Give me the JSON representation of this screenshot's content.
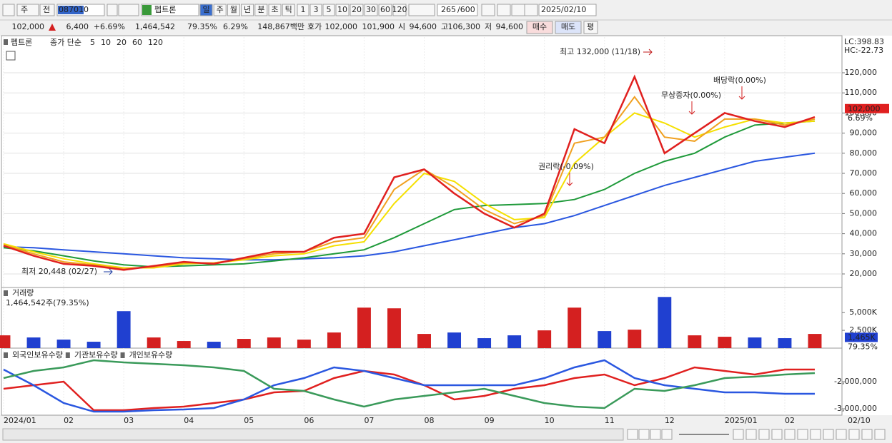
{
  "toolbar": {
    "market": "주",
    "prev": "전",
    "code": "087010",
    "name": "펩트론",
    "periods": [
      "일",
      "주",
      "월",
      "년",
      "분",
      "초",
      "틱"
    ],
    "intervals": [
      "1",
      "3",
      "5",
      "10",
      "20",
      "30",
      "60",
      "120"
    ],
    "count": "265",
    "max": "/600",
    "date": "2025/02/10"
  },
  "quote": {
    "price": "102,000",
    "change": "6,400",
    "rate": "+6.69%",
    "volume": "1,464,542",
    "volume_rate": "79.35%",
    "turnover": "6.29%",
    "amount": "148,867백만",
    "ask_label": "호가",
    "ask": "102,000",
    "bid": "101,900",
    "open_label": "시",
    "open": "94,600",
    "high_label": "고",
    "high": "106,300",
    "low_label": "저",
    "low": "94,600",
    "buy": "매수",
    "sell": "매도",
    "avg": "평"
  },
  "chart_data": [
    {
      "type": "line",
      "title": "펩트론",
      "legend_label": "종가 단순",
      "series": [
        {
          "name": "5",
          "color": "#e0201f",
          "values": [
            34000,
            29000,
            25000,
            24000,
            22000,
            24000,
            26000,
            25000,
            28000,
            31000,
            31000,
            38000,
            40000,
            68000,
            72000,
            60000,
            50000,
            43000,
            50000,
            92000,
            85000,
            118000,
            80000,
            90000,
            100000,
            96000,
            93000,
            98000
          ]
        },
        {
          "name": "10",
          "color": "#f0a020",
          "values": [
            34500,
            30000,
            26000,
            24500,
            22500,
            23500,
            25500,
            25500,
            27500,
            30000,
            31000,
            36000,
            38000,
            62000,
            72000,
            63000,
            52000,
            45000,
            49000,
            85000,
            88000,
            108000,
            88000,
            86000,
            97000,
            97000,
            94000,
            97000
          ]
        },
        {
          "name": "20",
          "color": "#f5e000",
          "values": [
            35000,
            31000,
            27500,
            25000,
            23000,
            23000,
            25000,
            25500,
            27000,
            29000,
            30000,
            34000,
            36000,
            55000,
            70000,
            66000,
            55000,
            47000,
            48000,
            75000,
            88000,
            100000,
            95000,
            88000,
            93000,
            97000,
            95000,
            96000
          ]
        },
        {
          "name": "60",
          "color": "#1f9a3a",
          "values": [
            33000,
            31500,
            29000,
            26500,
            24500,
            23500,
            24000,
            24500,
            25000,
            26500,
            28000,
            30000,
            32000,
            38000,
            45000,
            52000,
            54000,
            54500,
            55000,
            57000,
            62000,
            70000,
            76000,
            80000,
            88000,
            94000,
            95000,
            96000
          ]
        },
        {
          "name": "120",
          "color": "#2a57e0",
          "values": [
            33500,
            33000,
            32000,
            31000,
            30000,
            29000,
            28000,
            27500,
            27000,
            27000,
            27500,
            28000,
            29000,
            31000,
            34000,
            37000,
            40000,
            43000,
            45000,
            49000,
            54000,
            59000,
            64000,
            68000,
            72000,
            76000,
            78000,
            80000
          ]
        }
      ],
      "ylim": [
        13260,
        137730
      ],
      "yticks": [
        {
          "value": 20000,
          "label": "20,000"
        },
        {
          "value": 30000,
          "label": "30,000"
        },
        {
          "value": 40000,
          "label": "40,000"
        },
        {
          "value": 50000,
          "label": "50,000"
        },
        {
          "value": 60000,
          "label": "60,000"
        },
        {
          "value": 70000,
          "label": "70,000"
        },
        {
          "value": 80000,
          "label": "80,000"
        },
        {
          "value": 90000,
          "label": "90,000"
        },
        {
          "value": 100000,
          "label": "100,000"
        },
        {
          "value": 110000,
          "label": "110,000"
        },
        {
          "value": 120000,
          "label": "120,000"
        }
      ],
      "grid": true,
      "scale_labels": [
        "LC:398.83",
        "HC:-22.73"
      ],
      "annotations": [
        "최고 132,000 (11/18)",
        "최저 20,448 (02/27)",
        "권리락(-0.09%)",
        "무상증자(0.00%)",
        "배당락(0.00%)"
      ],
      "last_price": {
        "value": 102000,
        "label": "102,000"
      },
      "last_change": "6.69%"
    },
    {
      "type": "bar",
      "title": "거래량",
      "subtitle": "1,464,542주(79.35%)",
      "values": [
        1800000,
        1500000,
        1200000,
        900000,
        5200000,
        1500000,
        1000000,
        900000,
        1300000,
        1500000,
        1200000,
        2200000,
        5700000,
        5600000,
        2000000,
        2200000,
        1400000,
        1800000,
        2500000,
        5700000,
        2400000,
        2600000,
        7200000,
        1800000,
        1600000,
        1500000,
        1400000,
        2000000
      ],
      "up_color": "#d42020",
      "down_color": "#2040d0",
      "ylim": [
        0,
        8333000
      ],
      "yticks": [
        {
          "value": 2500000,
          "label": "2,500K"
        },
        {
          "value": 5000000,
          "label": "5,000K"
        }
      ],
      "last_value": {
        "value": 1465000,
        "label": "1,465K"
      },
      "last_change": "79.35%"
    },
    {
      "type": "line",
      "categories": [
        "2024/01",
        null,
        "02",
        null,
        "03",
        null,
        "04",
        null,
        "05",
        null,
        "06",
        null,
        "07",
        null,
        "08",
        null,
        "09",
        null,
        "10",
        null,
        "11",
        null,
        "12",
        null,
        "2025/01",
        null,
        "02",
        null
      ],
      "end_label": "02/10",
      "series": [
        {
          "name": "외국인보유수량",
          "color": "#e0201f",
          "values": [
            -2263000,
            -2132000,
            -2000000,
            -3053000,
            -3053000,
            -2974000,
            -2921000,
            -2789000,
            -2658000,
            -2395000,
            -2342000,
            -1868000,
            -1605000,
            -1737000,
            -2132000,
            -2658000,
            -2526000,
            -2263000,
            -2132000,
            -1868000,
            -1737000,
            -2132000,
            -1868000,
            -1474000,
            -1605000,
            -1737000,
            -1553000,
            -1553000
          ]
        },
        {
          "name": "기관보유수량",
          "color": "#2a57e0",
          "values": [
            -1553000,
            -2132000,
            -2789000,
            -3105000,
            -3105000,
            -3053000,
            -3026000,
            -2974000,
            -2658000,
            -2132000,
            -1868000,
            -1474000,
            -1605000,
            -1868000,
            -2132000,
            -2132000,
            -2132000,
            -2132000,
            -1868000,
            -1474000,
            -1211000,
            -1868000,
            -2132000,
            -2263000,
            -2395000,
            -2395000,
            -2447000,
            -2447000
          ]
        },
        {
          "name": "개인보유수량",
          "color": "#3a9a5a",
          "values": [
            -1868000,
            -1605000,
            -1474000,
            -1211000,
            -1289000,
            -1342000,
            -1395000,
            -1474000,
            -1605000,
            -2263000,
            -2342000,
            -2658000,
            -2921000,
            -2658000,
            -2526000,
            -2395000,
            -2263000,
            -2526000,
            -2789000,
            -2921000,
            -2974000,
            -2263000,
            -2342000,
            -2132000,
            -1868000,
            -1816000,
            -1737000,
            -1684000
          ]
        }
      ],
      "ylim": [
        -3236800,
        -815800
      ],
      "yticks": [
        {
          "value": -3000000,
          "label": "-3,000,000"
        },
        {
          "value": -2000000,
          "label": "-2,000,000"
        }
      ]
    }
  ]
}
